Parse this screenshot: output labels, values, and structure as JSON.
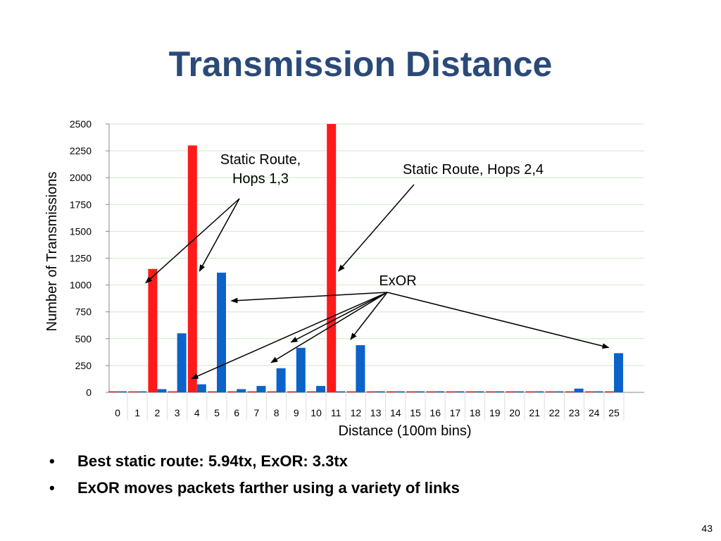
{
  "slide": {
    "title": "Transmission Distance",
    "bullets": [
      "Best static route: 5.94tx, ExOR: 3.3tx",
      "ExOR moves packets farther using a variety of links"
    ],
    "page_number": "43"
  },
  "chart_data": {
    "type": "bar",
    "xlabel": "Distance (100m bins)",
    "ylabel": "Number of Transmissions",
    "ylim": [
      0,
      2500
    ],
    "yticks": [
      0,
      250,
      500,
      750,
      1000,
      1250,
      1500,
      1750,
      2000,
      2250,
      2500
    ],
    "grid": true,
    "categories": [
      "0",
      "1",
      "2",
      "3",
      "4",
      "5",
      "6",
      "7",
      "8",
      "9",
      "10",
      "11",
      "12",
      "13",
      "14",
      "15",
      "16",
      "17",
      "18",
      "19",
      "20",
      "21",
      "22",
      "23",
      "24",
      "25"
    ],
    "series": [
      {
        "color": "#ff1a1a",
        "values": [
          0,
          0,
          1150,
          0,
          2300,
          0,
          0,
          0,
          0,
          0,
          0,
          2500,
          0,
          0,
          0,
          0,
          0,
          0,
          0,
          0,
          0,
          0,
          0,
          0,
          0,
          0
        ]
      },
      {
        "color": "#0b63c9",
        "values": [
          0,
          0,
          30,
          550,
          75,
          1115,
          30,
          60,
          225,
          415,
          60,
          0,
          440,
          10,
          0,
          0,
          10,
          0,
          0,
          10,
          0,
          0,
          0,
          35,
          0,
          365
        ]
      }
    ],
    "annotations": [
      {
        "text_lines": [
          "Static Route,",
          "Hops 1,3"
        ],
        "targets": [
          [
            "2",
            0
          ],
          [
            "4",
            0
          ]
        ]
      },
      {
        "text_lines": [
          "Static Route, Hops 2,4"
        ],
        "targets": [
          [
            "11",
            0
          ]
        ]
      },
      {
        "text_lines": [
          "ExOR"
        ],
        "targets": [
          [
            "5",
            1
          ],
          [
            "4",
            1
          ],
          [
            "8",
            1
          ],
          [
            "9",
            1
          ],
          [
            "12",
            1
          ],
          [
            "25",
            1
          ]
        ]
      }
    ]
  }
}
